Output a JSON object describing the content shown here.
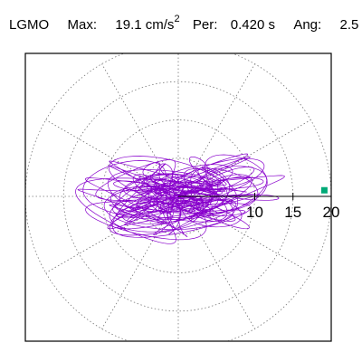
{
  "header": {
    "station": "LGMO",
    "max_label": "Max:",
    "max_value": "19.1",
    "max_unit": "cm/s",
    "max_exp": "2",
    "per_label": "Per:",
    "per_value": "0.420 s",
    "ang_label": "Ang:",
    "ang_value": "2.5"
  },
  "chart_data": {
    "type": "scatter",
    "title": "",
    "description_units": "cm/s^2",
    "rlim": [
      0,
      20
    ],
    "radial_ticks": [
      10,
      15,
      20
    ],
    "radial_tick_labels": [
      "10",
      "15",
      "20"
    ],
    "ring_values": [
      5,
      10,
      15,
      20
    ],
    "spoke_angles_deg": [
      0,
      30,
      60,
      90,
      120,
      150,
      180,
      210,
      240,
      270,
      300,
      330
    ],
    "grid": true,
    "max_point": {
      "x": 19.1,
      "y": 0.8
    },
    "colors": {
      "trace": "#8800cc",
      "marker": "#00aa77",
      "grid": "#777777"
    }
  }
}
